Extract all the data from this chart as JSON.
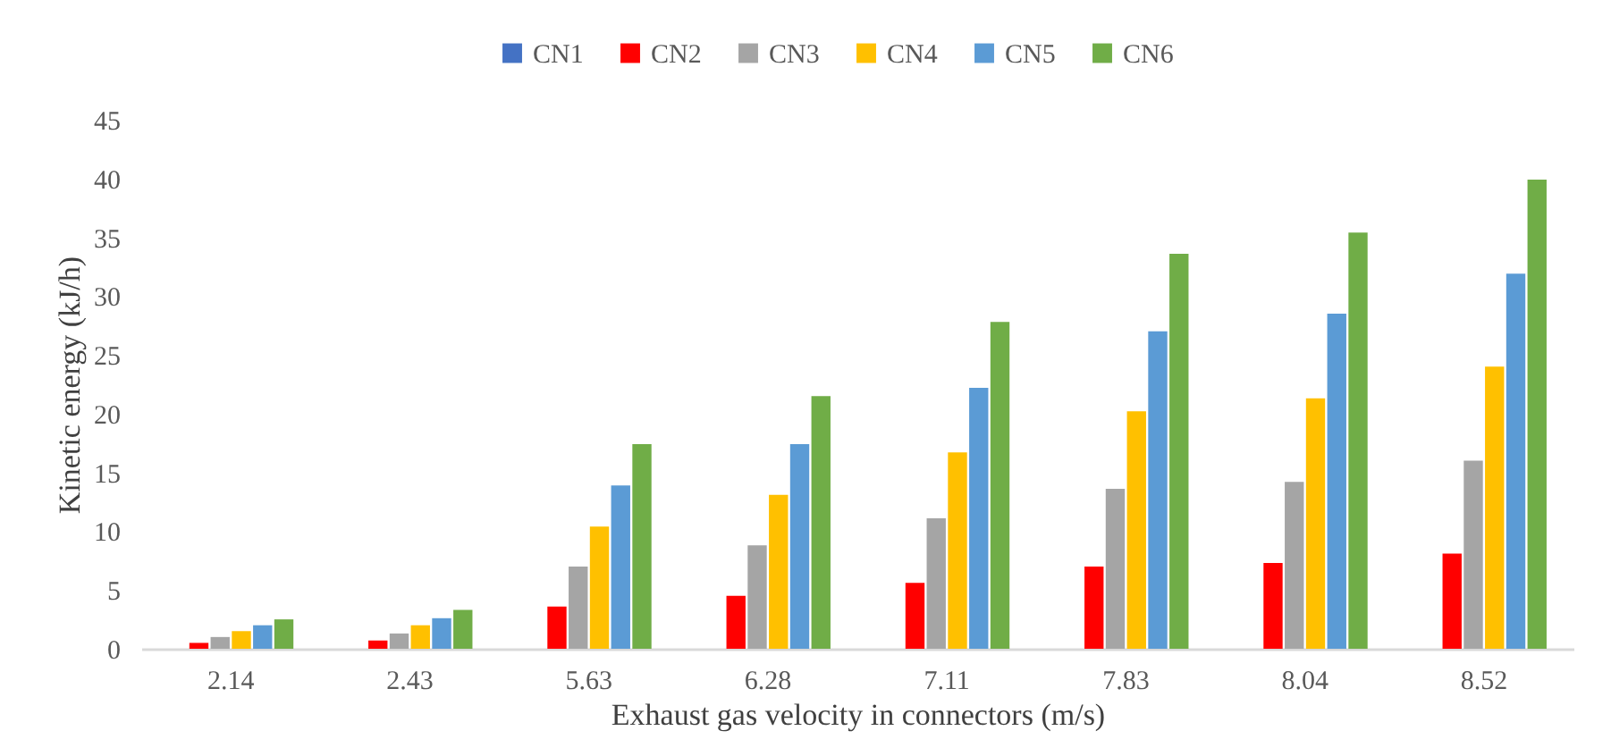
{
  "chart_data": {
    "type": "bar",
    "xlabel": "Exhaust gas velocity in connectors (m/s)",
    "ylabel": "Kinetic energy (kJ/h)",
    "categories": [
      "2.14",
      "2.43",
      "5.63",
      "6.28",
      "7.11",
      "7.83",
      "8.04",
      "8.52"
    ],
    "series": [
      {
        "name": "CN1",
        "color": "#4472c4",
        "values": [
          0,
          0,
          0,
          0,
          0,
          0,
          0,
          0
        ]
      },
      {
        "name": "CN2",
        "color": "#ff0000",
        "values": [
          0.5,
          0.7,
          3.6,
          4.5,
          5.6,
          7.0,
          7.3,
          8.1
        ]
      },
      {
        "name": "CN3",
        "color": "#a5a5a5",
        "values": [
          1.0,
          1.3,
          7.0,
          8.8,
          11.1,
          13.6,
          14.2,
          16.0
        ]
      },
      {
        "name": "CN4",
        "color": "#ffc000",
        "values": [
          1.5,
          2.0,
          10.4,
          13.1,
          16.7,
          20.2,
          21.3,
          24.0
        ]
      },
      {
        "name": "CN5",
        "color": "#5b9bd5",
        "values": [
          2.0,
          2.6,
          13.9,
          17.4,
          22.2,
          27.0,
          28.5,
          31.9
        ]
      },
      {
        "name": "CN6",
        "color": "#70ad47",
        "values": [
          2.5,
          3.3,
          17.4,
          21.5,
          27.8,
          33.6,
          35.4,
          39.9
        ]
      }
    ],
    "ylim": [
      0,
      45
    ],
    "yticks": [
      0,
      5,
      10,
      15,
      20,
      25,
      30,
      35,
      40,
      45
    ],
    "grid": false,
    "legend": "top"
  }
}
